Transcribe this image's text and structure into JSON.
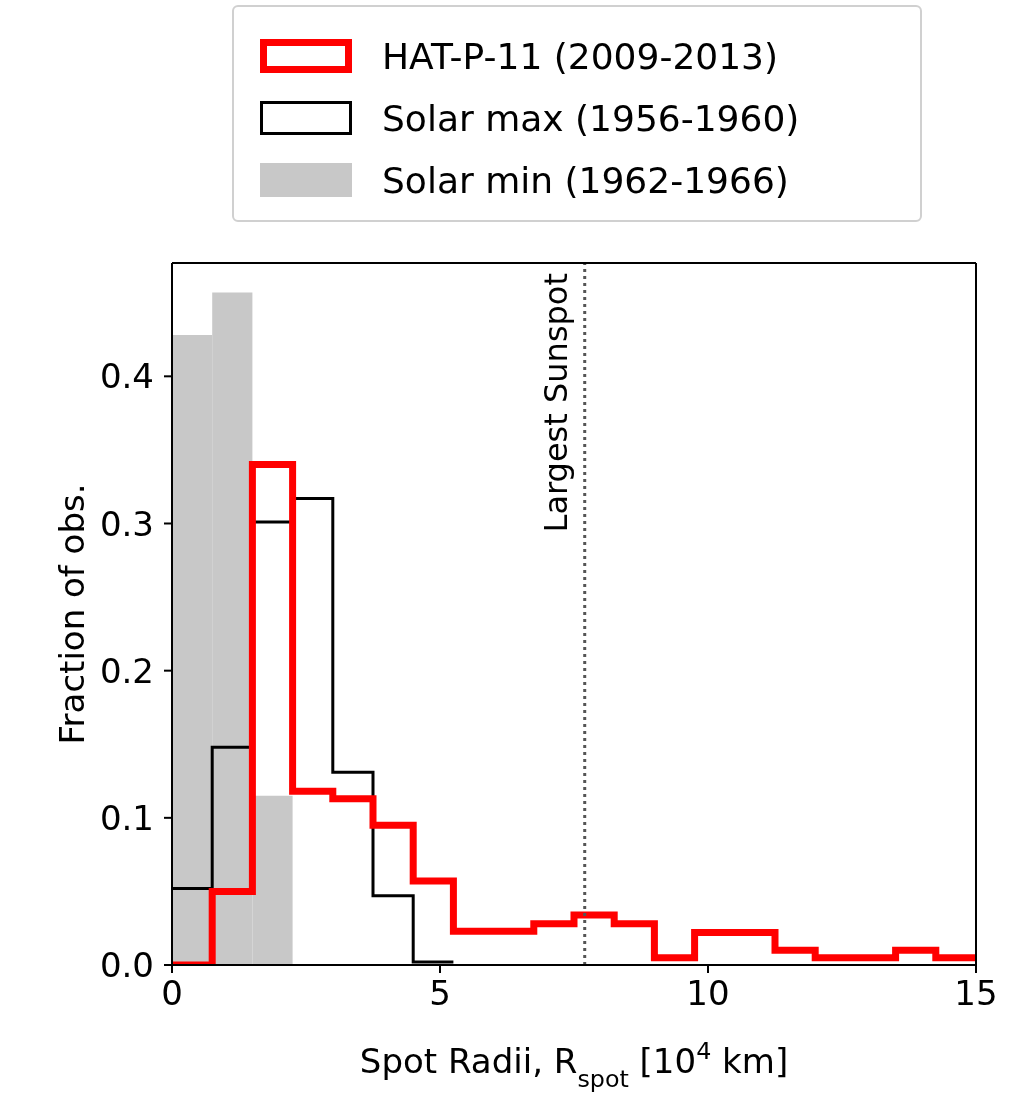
{
  "chart_data": {
    "type": "histogram",
    "xlabel": "Spot Radii, R$_{spot}$ [10$^{4}$ km]",
    "ylabel": "Fraction of obs.",
    "bins": [
      0,
      0.75,
      1.5,
      2.25
    ],
    "series": [
      {
        "name": "Solar min (1962-1966)",
        "color": "#c8c8c8",
        "values": [
          0.428,
          0.457,
          0.115
        ]
      },
      {
        "name": "Solar max (1956-1960)",
        "color": "#000000",
        "type": "step",
        "x": [
          0,
          0.75,
          1.5,
          2.25,
          3,
          3.75,
          4.5,
          5.25
        ],
        "values": [
          0.052,
          0.148,
          0.301,
          0.317,
          0.131,
          0.047,
          0.002,
          0.002
        ]
      },
      {
        "name": "HAT-P-11 (2009-2013)",
        "color": "#ff0000",
        "type": "step",
        "x": [
          0,
          0.75,
          1.5,
          2.25,
          3,
          3.75,
          4.5,
          5.25,
          6,
          6.75,
          7.5,
          8.25,
          9,
          9.75,
          10.5,
          11.25,
          12,
          12.75,
          13.5,
          14.25,
          15
        ],
        "values": [
          0,
          0.05,
          0.34,
          0.118,
          0.113,
          0.095,
          0.057,
          0.023,
          0.023,
          0.028,
          0.034,
          0.028,
          0.005,
          0.022,
          0.022,
          0.01,
          0.005,
          0.005,
          0.01,
          0.005,
          0.005
        ]
      }
    ],
    "xlim": [
      0,
      15
    ],
    "xticks": [
      0,
      5,
      10,
      15
    ],
    "ylim": [
      0,
      0.477
    ],
    "yticks": [
      {
        "value": 0,
        "label": "0.0"
      },
      {
        "value": 0.1,
        "label": "0.1"
      },
      {
        "value": 0.2,
        "label": "0.2"
      },
      {
        "value": 0.3,
        "label": "0.3"
      },
      {
        "value": 0.4,
        "label": "0.4"
      }
    ],
    "ref_lines": [
      {
        "axis": "x",
        "value": 7.7,
        "label": "Largest Sunspot",
        "color": "#555555",
        "line_style": "dotted"
      }
    ],
    "legend": "top",
    "grid": false
  }
}
